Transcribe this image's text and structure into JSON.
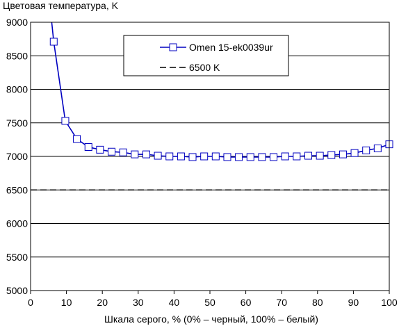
{
  "chart_data": {
    "type": "line",
    "title": "Цветовая температура, K",
    "xlabel": "Шкала серого, % (0% – черный, 100% – белый)",
    "ylabel": "",
    "xlim": [
      0,
      100
    ],
    "ylim": [
      5000,
      9000
    ],
    "xticks": [
      0,
      10,
      20,
      30,
      40,
      50,
      60,
      70,
      80,
      90,
      100
    ],
    "yticks": [
      5000,
      5500,
      6000,
      6500,
      7000,
      7500,
      8000,
      8500,
      9000
    ],
    "grid": "horizontal",
    "legend": "top-center",
    "series": [
      {
        "name": "Omen 15-ek0039ur",
        "color": "#0000c0",
        "marker": "square",
        "x": [
          6.45,
          9.68,
          12.9,
          16.13,
          19.35,
          22.58,
          25.81,
          29.03,
          32.26,
          35.48,
          38.71,
          41.94,
          45.16,
          48.39,
          51.61,
          54.84,
          58.06,
          61.29,
          64.52,
          67.74,
          70.97,
          74.19,
          77.42,
          80.65,
          83.87,
          87.1,
          90.32,
          93.55,
          96.77,
          100
        ],
        "y": [
          8710,
          7530,
          7260,
          7140,
          7100,
          7070,
          7060,
          7030,
          7030,
          7010,
          7000,
          7000,
          6990,
          7000,
          7000,
          6990,
          6990,
          6990,
          6990,
          6990,
          7000,
          7000,
          7010,
          7010,
          7020,
          7030,
          7050,
          7090,
          7120,
          7180
        ],
        "offscale_start": {
          "x": 5.9,
          "y": 9100
        }
      },
      {
        "name": "6500 K",
        "color": "#000000",
        "style": "dashed",
        "x": [
          0,
          100
        ],
        "y": [
          6500,
          6500
        ]
      }
    ]
  }
}
